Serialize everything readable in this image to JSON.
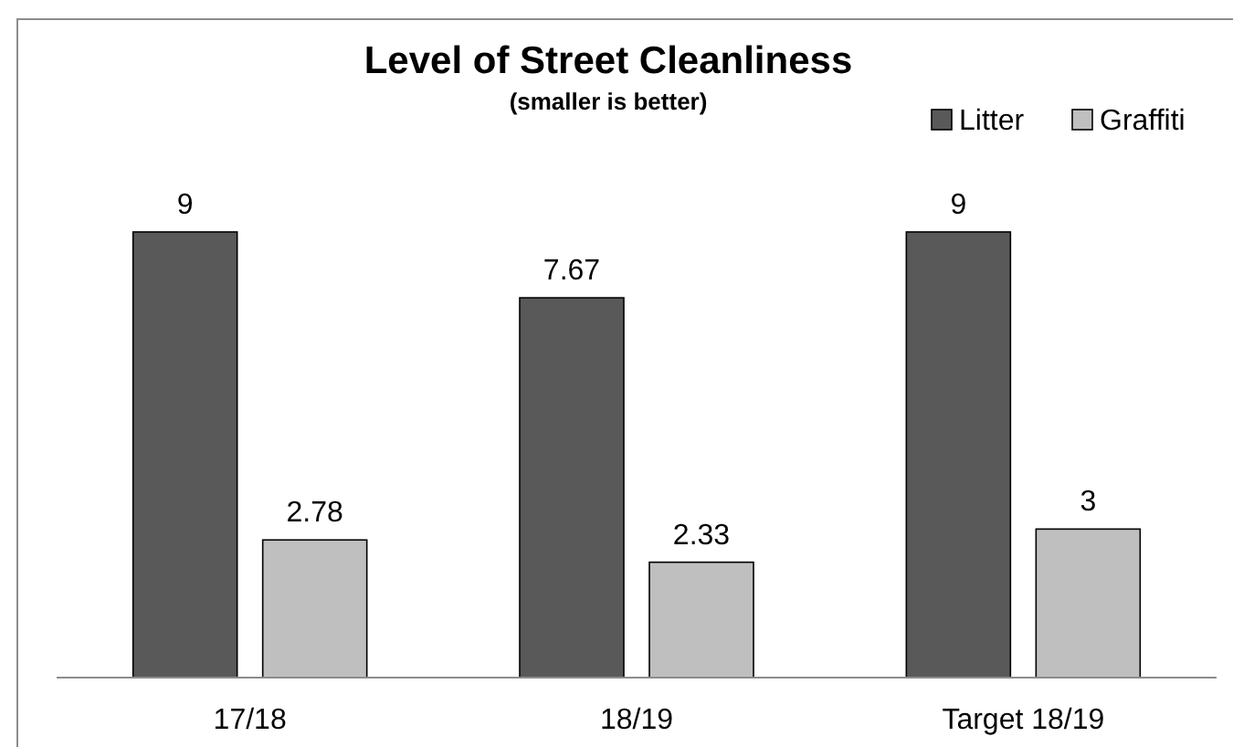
{
  "chart_data": {
    "type": "bar",
    "title": "Level of Street Cleanliness",
    "subtitle": "(smaller is better)",
    "categories": [
      "17/18",
      "18/19",
      "Target 18/19"
    ],
    "series": [
      {
        "name": "Litter",
        "color": "#595959",
        "values": [
          9,
          7.67,
          9
        ]
      },
      {
        "name": "Graffiti",
        "color": "#bfbfbf",
        "values": [
          2.78,
          2.33,
          3
        ]
      }
    ],
    "data_labels": true,
    "legend": "top right"
  }
}
